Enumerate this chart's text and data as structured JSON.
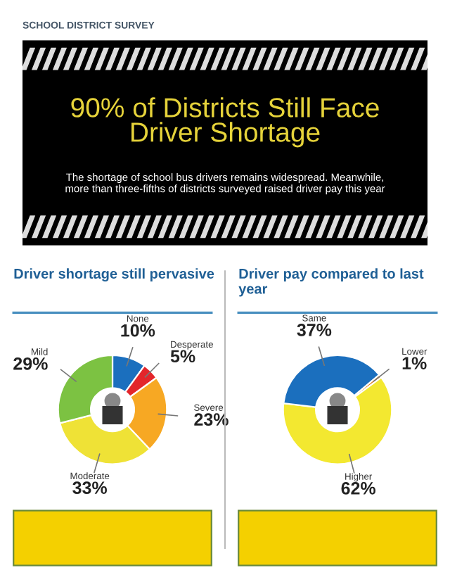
{
  "chart_data": [
    {
      "type": "donut",
      "title": "Driver shortage still pervasive",
      "categories": [
        "None",
        "Desperate",
        "Severe",
        "Moderate",
        "Mild"
      ],
      "values": [
        10,
        5,
        23,
        33,
        29
      ],
      "colors": [
        "#1b6fbe",
        "#e3262b",
        "#f7a823",
        "#efe236",
        "#7cc242"
      ],
      "value_labels": [
        "10%",
        "5%",
        "23%",
        "33%",
        "29%"
      ],
      "annotations": [
        "SCHOOL DISTRICT SURVEY",
        "90% of Districts Still Face\nDriver Shortage",
        "The shortage of school bus drivers remains widespread. Meanwhile,\nmore than three-fifths of districts surveyed raised driver pay this year"
      ]
    },
    {
      "type": "donut",
      "title": "Driver pay compared to last year",
      "categories": [
        "Lower",
        "Higher",
        "Same"
      ],
      "values": [
        1,
        62,
        37
      ],
      "colors": [
        "#d9822b",
        "#f3e830",
        "#1b6fbe"
      ],
      "value_labels": [
        "1%",
        "62%",
        "37%"
      ]
    }
  ]
}
